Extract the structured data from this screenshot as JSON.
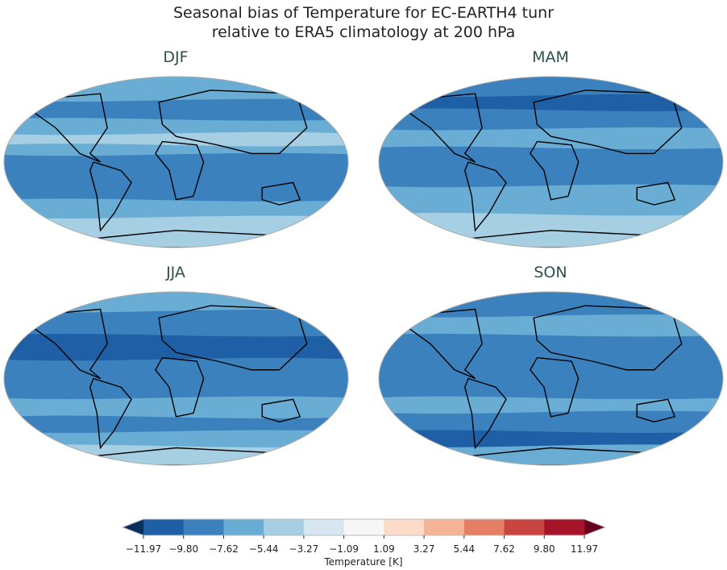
{
  "chart_data": {
    "type": "heatmap",
    "title": [
      "Seasonal bias of Temperature for EC-EARTH4 tunr",
      "relative to ERA5 climatology at 200 hPa"
    ],
    "panels": [
      {
        "title": "DJF",
        "zonal_bands_K": [
          [
            90,
            65,
            -6.5
          ],
          [
            65,
            45,
            -8.5
          ],
          [
            45,
            30,
            -6.5
          ],
          [
            30,
            18,
            -4.3
          ],
          [
            18,
            8,
            -6.5
          ],
          [
            8,
            -40,
            -8.7
          ],
          [
            -40,
            -58,
            -6.5
          ],
          [
            -58,
            -90,
            -4.3
          ]
        ]
      },
      {
        "title": "MAM",
        "zonal_bands_K": [
          [
            90,
            70,
            -8.7
          ],
          [
            70,
            55,
            -10.5
          ],
          [
            55,
            35,
            -8.7
          ],
          [
            35,
            15,
            -6.5
          ],
          [
            15,
            -25,
            -8.7
          ],
          [
            -25,
            -55,
            -6.5
          ],
          [
            -55,
            -90,
            -4.3
          ]
        ]
      },
      {
        "title": "JJA",
        "zonal_bands_K": [
          [
            90,
            70,
            -6.5
          ],
          [
            70,
            45,
            -8.7
          ],
          [
            45,
            20,
            -10.5
          ],
          [
            20,
            5,
            -8.7
          ],
          [
            5,
            -20,
            -8.7
          ],
          [
            -20,
            -40,
            -6.5
          ],
          [
            -40,
            -55,
            -8.7
          ],
          [
            -55,
            -70,
            -6.5
          ],
          [
            -70,
            -90,
            -4.3
          ]
        ]
      },
      {
        "title": "SON",
        "zonal_bands_K": [
          [
            90,
            65,
            -8.7
          ],
          [
            65,
            45,
            -6.5
          ],
          [
            45,
            20,
            -8.7
          ],
          [
            20,
            -20,
            -8.7
          ],
          [
            -20,
            -35,
            -6.5
          ],
          [
            -35,
            -55,
            -8.7
          ],
          [
            -55,
            -70,
            -10.5
          ],
          [
            -70,
            -90,
            -6.5
          ]
        ]
      }
    ],
    "colorbar": {
      "label": "Temperature [K]",
      "ticks": [
        "−11.97",
        "−9.80",
        "−7.62",
        "−5.44",
        "−3.27",
        "−1.09",
        "1.09",
        "3.27",
        "5.44",
        "7.62",
        "9.80",
        "11.97"
      ],
      "levels": [
        -11.97,
        -9.8,
        -7.62,
        -5.44,
        -3.27,
        -1.09,
        1.09,
        3.27,
        5.44,
        7.62,
        9.8,
        11.97
      ],
      "colors": [
        "#1f5fa5",
        "#3a81be",
        "#6aadd4",
        "#a7cfe4",
        "#d6e7f1",
        "#f6f6f6",
        "#fcdcc9",
        "#f5b495",
        "#e47f65",
        "#c94540",
        "#a51429"
      ],
      "under_color": "#0a2f5c",
      "over_color": "#67001f",
      "extend": "both"
    }
  }
}
